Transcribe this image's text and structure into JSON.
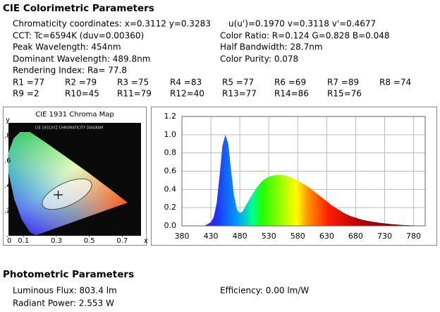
{
  "header": {
    "title": "CIE Colorimetric Parameters"
  },
  "params": {
    "chromaticity": "Chromaticity coordinates: x=0.3112 y=0.3283",
    "uv": "u(u')=0.1970 v=0.3118 v'=0.4677",
    "cct": "CCT: Tc=6594K (duv=0.00360)",
    "color_ratio": "Color Ratio: R=0.124  G=0.828  B=0.048",
    "peak": "Peak Wavelength: 454nm",
    "half_bandwidth": "Half Bandwidth: 28.7nm",
    "dominant": "Dominant Wavelength: 489.8nm",
    "purity": "Color Purity: 0.078",
    "rendering": "Rendering Index: Ra= 77.8",
    "r_values": [
      "R1 =77",
      "R2 =79",
      "R3 =75",
      "R4 =83",
      "R5 =77",
      "R6 =69",
      "R7 =89",
      "R8 =74",
      "R9 =2",
      "R10=45",
      "R11=79",
      "R12=40",
      "R13=77",
      "R14=86",
      "R15=76"
    ]
  },
  "cie_map": {
    "title": "CIE 1931 Chroma Map",
    "diagram_label": "CIE 1931XYZ CHROMATICITY DIAGRAM",
    "x_label": "x",
    "y_label": "y",
    "xlim": [
      0,
      0.81
    ],
    "ylim": [
      0,
      0.9
    ],
    "xticks": [
      {
        "value": 0,
        "label": "0"
      },
      0.1,
      0.3,
      0.5,
      0.7
    ],
    "yticks": [
      {
        "value": 0.2,
        "label": ".2"
      },
      {
        "value": 0.4,
        "label": ".4"
      },
      {
        "value": 0.6,
        "label": ".6"
      },
      {
        "value": 0.8,
        "label": ".8"
      }
    ]
  },
  "chart_data": {
    "type": "area",
    "x": [
      380,
      400,
      420,
      430,
      435,
      440,
      445,
      450,
      455,
      460,
      465,
      470,
      475,
      480,
      485,
      490,
      500,
      510,
      520,
      530,
      540,
      550,
      560,
      570,
      580,
      590,
      600,
      610,
      620,
      630,
      640,
      650,
      660,
      670,
      680,
      690,
      700,
      720,
      740,
      760,
      780,
      800
    ],
    "values": [
      0,
      0,
      0.005,
      0.04,
      0.1,
      0.25,
      0.55,
      0.88,
      1.0,
      0.9,
      0.6,
      0.33,
      0.18,
      0.14,
      0.16,
      0.22,
      0.33,
      0.43,
      0.5,
      0.54,
      0.555,
      0.56,
      0.55,
      0.53,
      0.5,
      0.46,
      0.42,
      0.37,
      0.32,
      0.27,
      0.22,
      0.18,
      0.14,
      0.11,
      0.09,
      0.07,
      0.055,
      0.035,
      0.02,
      0.01,
      0.005,
      0
    ],
    "xlim": [
      380,
      800
    ],
    "ylim": [
      0,
      1.2
    ],
    "xticks": [
      380,
      430,
      480,
      530,
      580,
      630,
      680,
      730,
      780
    ],
    "yticks": [
      {
        "value": 0,
        "label": "0.0"
      },
      {
        "value": 0.2,
        "label": "0.2"
      },
      {
        "value": 0.4,
        "label": "0.4"
      },
      {
        "value": 0.6,
        "label": "0.6"
      },
      {
        "value": 0.8,
        "label": "0.8"
      },
      {
        "value": 1.0,
        "label": "1.0"
      },
      {
        "value": 1.2,
        "label": "1.2"
      }
    ],
    "grid": true
  },
  "photometric": {
    "title": "Photometric Parameters",
    "luminous_flux": "Luminous Flux: 803.4 lm",
    "efficiency": "Efficiency: 0.00 lm/W",
    "radiant_power": "Radiant Power: 2.553 W"
  }
}
